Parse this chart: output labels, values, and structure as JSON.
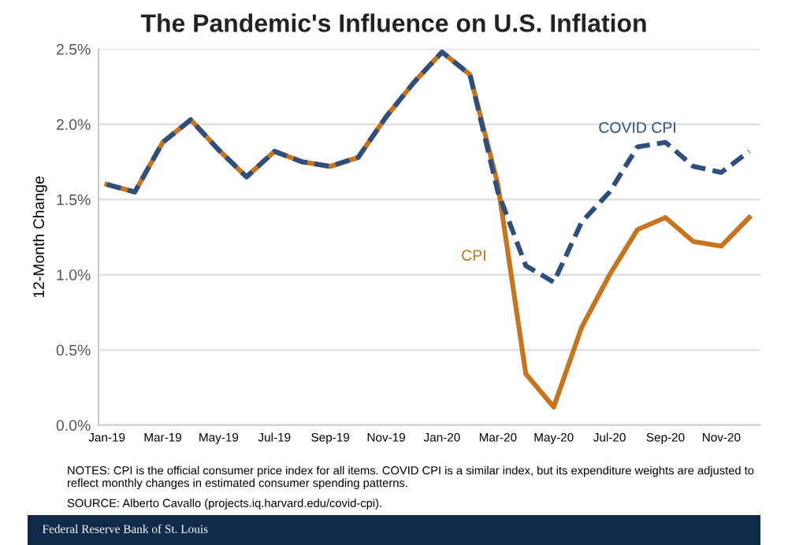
{
  "chart_data": {
    "type": "line",
    "title": "The Pandemic's Influence on U.S. Inflation",
    "ylabel": "12-Month Change",
    "categories": [
      "Jan-19",
      null,
      "Mar-19",
      null,
      "May-19",
      null,
      "Jul-19",
      null,
      "Sep-19",
      null,
      "Nov-19",
      null,
      "Jan-20",
      null,
      "Mar-20",
      null,
      "May-20",
      null,
      "Jul-20",
      null,
      "Sep-20",
      null,
      "Nov-20",
      null
    ],
    "series": [
      {
        "name": "CPI",
        "color": "#c8731e",
        "line_style": "solid",
        "values": [
          1.6,
          1.55,
          1.88,
          2.03,
          1.83,
          1.65,
          1.82,
          1.75,
          1.72,
          1.78,
          2.05,
          2.28,
          2.48,
          2.33,
          1.6,
          0.34,
          0.12,
          0.65,
          1.0,
          1.3,
          1.38,
          1.22,
          1.19,
          1.38
        ]
      },
      {
        "name": "COVID CPI",
        "color": "#2e4e7e",
        "line_style": "dashed",
        "values": [
          1.6,
          1.55,
          1.88,
          2.03,
          1.83,
          1.65,
          1.82,
          1.75,
          1.72,
          1.78,
          2.05,
          2.28,
          2.48,
          2.33,
          1.55,
          1.06,
          0.95,
          1.35,
          1.55,
          1.85,
          1.88,
          1.72,
          1.68,
          1.82
        ]
      }
    ],
    "ylim": [
      0,
      2.5
    ],
    "yticks": [
      {
        "value": 0,
        "label": "0.0%"
      },
      {
        "value": 0.5,
        "label": "0.5%"
      },
      {
        "value": 1.0,
        "label": "1.0%"
      },
      {
        "value": 1.5,
        "label": "1.5%"
      },
      {
        "value": 2.0,
        "label": "2.0%"
      },
      {
        "value": 2.5,
        "label": "2.5%"
      }
    ],
    "grid": "y",
    "legend": false,
    "annotations": [
      "NOTES: CPI is the official consumer price index for all items. COVID CPI is a similar index, but its expenditure weights are adjusted to reflect monthly changes in estimated consumer spending patterns.",
      "SOURCE: Alberto Cavallo (projects.iq.harvard.edu/covid-cpi).",
      "Federal Reserve Bank of St. Louis"
    ]
  }
}
